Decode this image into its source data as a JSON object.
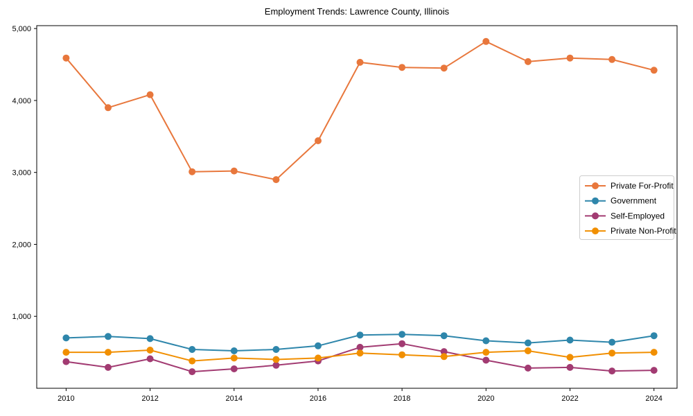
{
  "chart_data": {
    "type": "line",
    "title": "Employment Trends: Lawrence County, Illinois",
    "x_label": "",
    "y_label": "",
    "x": [
      2010,
      2011,
      2012,
      2013,
      2014,
      2015,
      2016,
      2017,
      2018,
      2019,
      2020,
      2021,
      2022,
      2023,
      2024
    ],
    "series": [
      {
        "name": "Private For-Profit",
        "color": "#E8773C",
        "marker": "circle",
        "values": [
          4590,
          3900,
          4080,
          3010,
          3020,
          2900,
          3440,
          4530,
          4460,
          4450,
          4820,
          4540,
          4590,
          4570,
          4420
        ]
      },
      {
        "name": "Government",
        "color": "#2E86AB",
        "marker": "circle",
        "values": [
          700,
          720,
          690,
          540,
          520,
          540,
          590,
          740,
          750,
          730,
          660,
          630,
          670,
          640,
          730
        ]
      },
      {
        "name": "Self-Employed",
        "color": "#A23B72",
        "marker": "circle",
        "values": [
          370,
          290,
          410,
          230,
          270,
          320,
          380,
          570,
          620,
          510,
          390,
          280,
          290,
          240,
          250
        ]
      },
      {
        "name": "Private Non-Profit",
        "color": "#F18F01",
        "marker": "circle",
        "values": [
          500,
          500,
          530,
          380,
          420,
          400,
          420,
          490,
          465,
          440,
          500,
          520,
          430,
          490,
          500
        ]
      }
    ],
    "xticks": {
      "values": [
        2010,
        2012,
        2014,
        2016,
        2018,
        2020,
        2022,
        2024
      ],
      "labels": [
        "2010",
        "2012",
        "2014",
        "2016",
        "2018",
        "2020",
        "2022",
        "2024"
      ]
    },
    "yticks": {
      "values": [
        1000,
        2000,
        3000,
        4000,
        5000
      ],
      "labels": [
        "1,000",
        "2,000",
        "3,000",
        "4,000",
        "5,000"
      ]
    },
    "xlim": [
      2009.3,
      2024.55
    ],
    "ylim": [
      0,
      5040
    ],
    "grid": false,
    "legend": {
      "position": "center-right",
      "border_color": "#cccccc",
      "background": "#ffffff"
    },
    "axis_color": "#000000",
    "background": "#ffffff"
  }
}
